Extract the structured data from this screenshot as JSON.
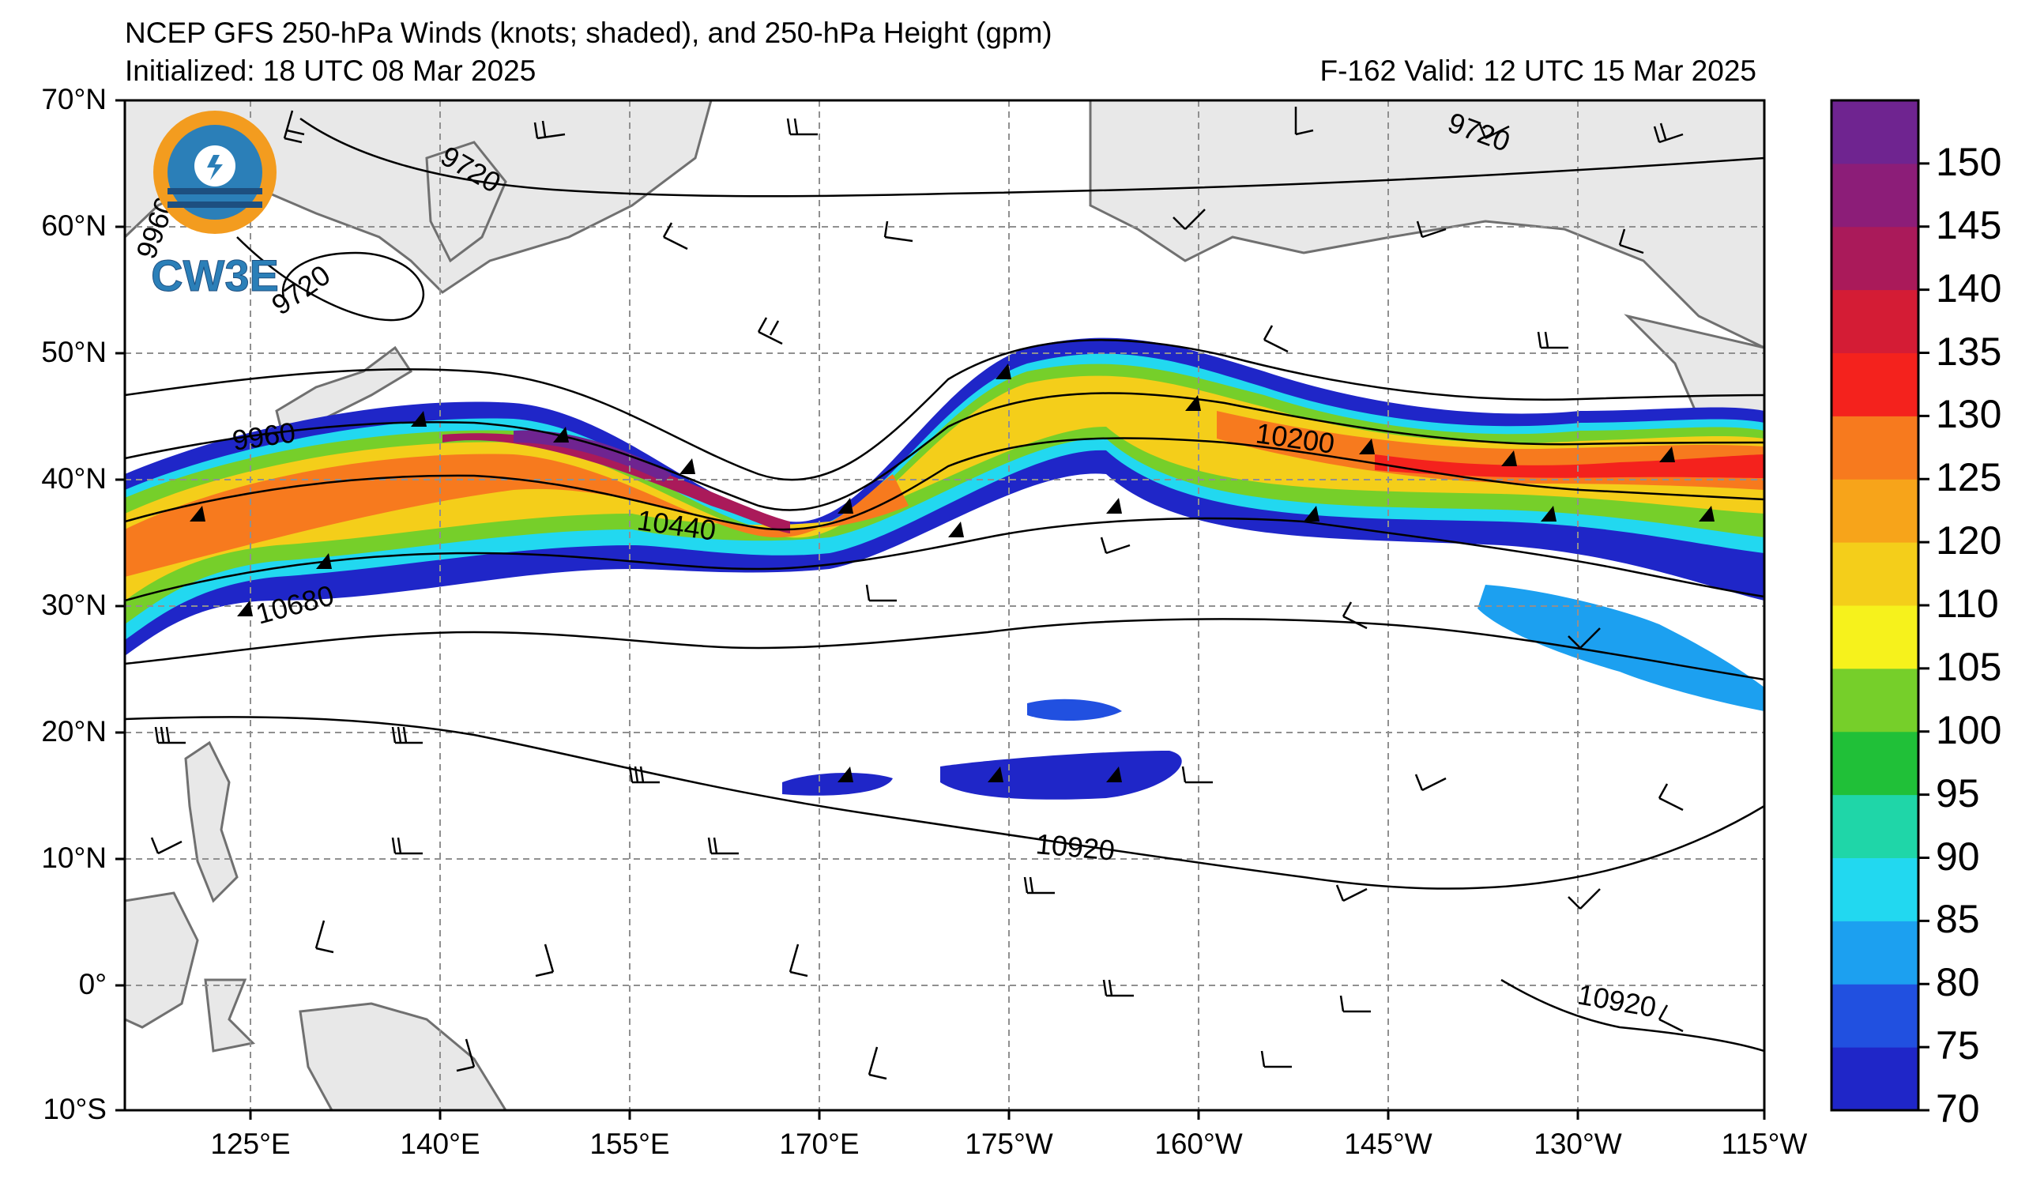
{
  "header": {
    "title": "NCEP GFS 250-hPa Winds (knots; shaded), and 250-hPa Height (gpm)",
    "init": "Initialized: 18 UTC 08 Mar 2025",
    "valid": "F-162  Valid: 12 UTC 15 Mar 2025"
  },
  "logo": {
    "text": "CW3E",
    "colors": {
      "orange": "#f39c1f",
      "blue": "#2b7fb8",
      "dark": "#1d4f80"
    }
  },
  "axes": {
    "lat_labels": [
      "70°N",
      "60°N",
      "50°N",
      "40°N",
      "30°N",
      "20°N",
      "10°N",
      "0°",
      "10°S"
    ],
    "lon_labels": [
      "125°E",
      "140°E",
      "155°E",
      "170°E",
      "175°W",
      "160°W",
      "145°W",
      "130°W",
      "115°W"
    ]
  },
  "contour_labels": [
    "9720",
    "9720",
    "9720",
    "9960",
    "9960",
    "10200",
    "10440",
    "10680",
    "10920",
    "10920"
  ],
  "colorbar": {
    "ticks": [
      "70",
      "75",
      "80",
      "85",
      "90",
      "95",
      "100",
      "105",
      "110",
      "120",
      "125",
      "130",
      "135",
      "140",
      "145",
      "150"
    ],
    "colors": [
      "#1f26c8",
      "#2150e0",
      "#1ca0f0",
      "#22d8f0",
      "#1fd6a8",
      "#20c038",
      "#76cf2a",
      "#f6f21c",
      "#f4ce1a",
      "#f7a41a",
      "#f77a1e",
      "#f4221d",
      "#d41c35",
      "#aa1a5a",
      "#8c1d78",
      "#6f2490"
    ]
  },
  "map": {
    "land_color": "#e8e8e8",
    "coast_color": "#707070",
    "grid_color": "#909090"
  }
}
